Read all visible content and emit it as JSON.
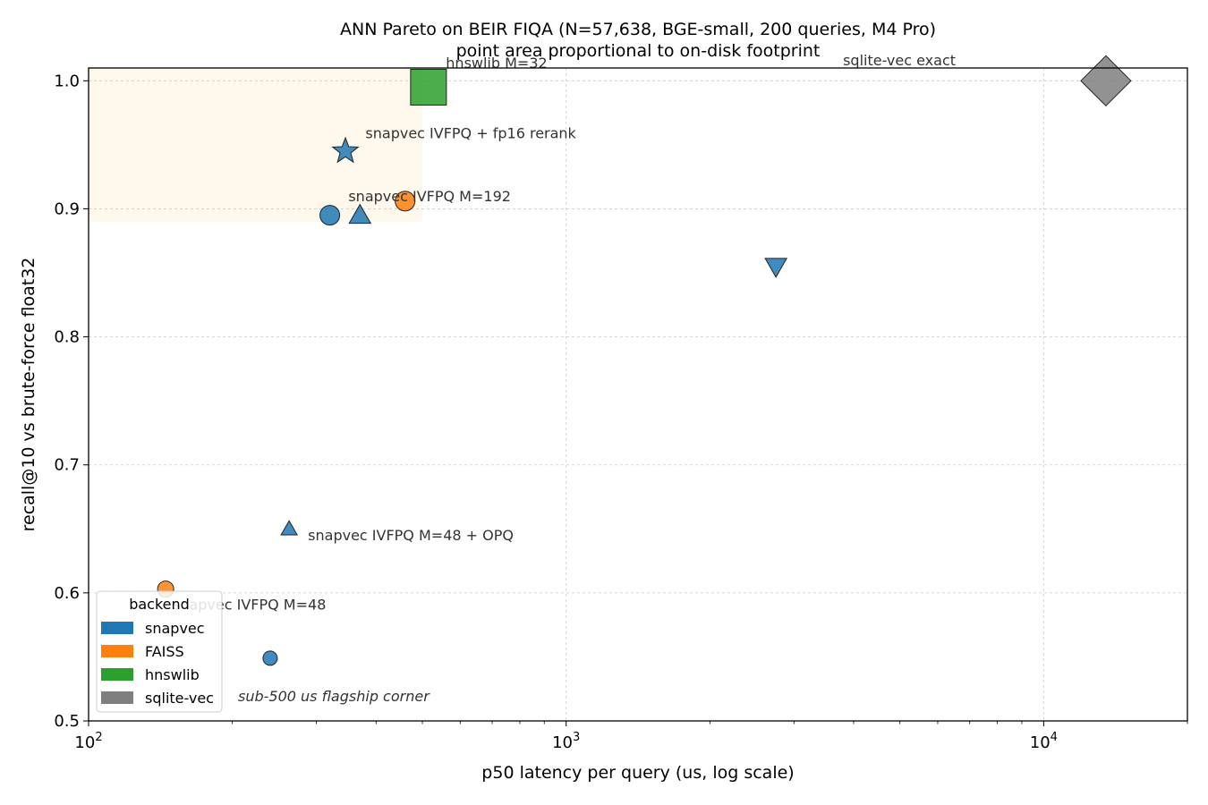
{
  "chart_data": {
    "type": "scatter",
    "title": "ANN Pareto on BEIR FIQA (N=57,638, BGE-small, 200 queries, M4 Pro)",
    "subtitle": "point area proportional to on-disk footprint",
    "xlabel": "p50 latency per query (us, log scale)",
    "ylabel": "recall@10 vs brute-force float32",
    "x_scale": "log",
    "xlim": [
      100,
      20000
    ],
    "ylim": [
      0.5,
      1.01
    ],
    "x_ticks": [
      {
        "value": 100,
        "base": "10",
        "exp": "2"
      },
      {
        "value": 1000,
        "base": "10",
        "exp": "3"
      },
      {
        "value": 10000,
        "base": "10",
        "exp": "4"
      }
    ],
    "y_ticks": [
      {
        "value": 0.5,
        "label": "0.5"
      },
      {
        "value": 0.6,
        "label": "0.6"
      },
      {
        "value": 0.7,
        "label": "0.7"
      },
      {
        "value": 0.8,
        "label": "0.8"
      },
      {
        "value": 0.9,
        "label": "0.9"
      },
      {
        "value": 1.0,
        "label": "1.0"
      }
    ],
    "grid": true,
    "region": {
      "x": [
        100,
        500
      ],
      "y": [
        0.89,
        1.01
      ],
      "color": "#fff8ec"
    },
    "region_label": "sub-500 us flagship corner",
    "region_label_color": "#9a7a10",
    "legend": {
      "title": "backend",
      "position": "lower-left",
      "entries": [
        {
          "label": "snapvec",
          "color": "#1f77b4"
        },
        {
          "label": "FAISS",
          "color": "#ff7f0e"
        },
        {
          "label": "hnswlib",
          "color": "#2ca02c"
        },
        {
          "label": "sqlite-vec",
          "color": "#7f7f7f"
        }
      ]
    },
    "points": [
      {
        "backend": "snapvec",
        "x": 345,
        "y": 0.945,
        "marker": "star",
        "size": 15
      },
      {
        "backend": "snapvec",
        "x": 320,
        "y": 0.895,
        "marker": "circle",
        "size": 11
      },
      {
        "backend": "snapvec",
        "x": 370,
        "y": 0.895,
        "marker": "triangle-up",
        "size": 12
      },
      {
        "backend": "snapvec",
        "x": 2750,
        "y": 0.855,
        "marker": "triangle-down",
        "size": 12
      },
      {
        "backend": "snapvec",
        "x": 263,
        "y": 0.65,
        "marker": "triangle-up",
        "size": 9
      },
      {
        "backend": "snapvec",
        "x": 240,
        "y": 0.549,
        "marker": "circle",
        "size": 8
      },
      {
        "backend": "FAISS",
        "x": 460,
        "y": 0.906,
        "marker": "circle",
        "size": 11
      },
      {
        "backend": "FAISS",
        "x": 145,
        "y": 0.603,
        "marker": "circle",
        "size": 9
      },
      {
        "backend": "hnswlib",
        "x": 515,
        "y": 0.995,
        "marker": "square",
        "size": 20
      },
      {
        "backend": "sqlite-vec",
        "x": 13500,
        "y": 1.0,
        "marker": "diamond",
        "size": 28
      }
    ],
    "annotations": [
      {
        "text": "hnswlib M=32",
        "x": 560,
        "y": 1.01
      },
      {
        "text": "snapvec IVFPQ + fp16 rerank",
        "x": 380,
        "y": 0.955
      },
      {
        "text": "snapvec IVFPQ M=192",
        "x": 350,
        "y": 0.906
      },
      {
        "text": "sqlite-vec exact",
        "x": 3800,
        "y": 1.012
      },
      {
        "text": "snapvec IVFPQ M=48 + OPQ",
        "x": 288,
        "y": 0.641
      },
      {
        "text": "snapvec IVFPQ M=48",
        "x": 150,
        "y": 0.587
      }
    ]
  }
}
